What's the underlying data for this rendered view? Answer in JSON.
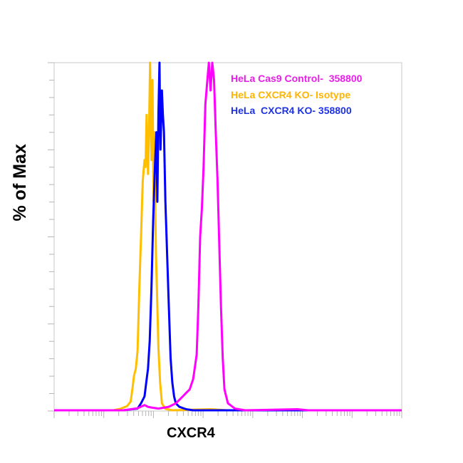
{
  "chart_data": {
    "type": "line",
    "title": "",
    "xlabel": "CXCR4",
    "ylabel": "% of Max",
    "x_scale": "log",
    "x_tick_labels_visible": false,
    "y_tick_labels_visible": false,
    "ylim": [
      0,
      100
    ],
    "grid": false,
    "legend_position": "top-right (inside)",
    "legend": [
      {
        "label": "HeLa Cas9 Control-  358800",
        "color": "#ff00ff"
      },
      {
        "label": "HeLa CXCR4 KO- Isotype",
        "color": "#ffbf00"
      },
      {
        "label": "HeLa  CXCR4 KO- 358800",
        "color": "#0000ff"
      }
    ],
    "x_note": "x values are fractional position along log axis (0 = left, 1 = right); 7 decades",
    "series": [
      {
        "name": "HeLa CXCR4 KO- Isotype",
        "color": "#ffbf00",
        "points": [
          [
            0.0,
            0
          ],
          [
            0.17,
            0
          ],
          [
            0.19,
            0.4
          ],
          [
            0.21,
            1.2
          ],
          [
            0.22,
            2.5
          ],
          [
            0.225,
            6
          ],
          [
            0.23,
            10
          ],
          [
            0.235,
            12
          ],
          [
            0.24,
            17
          ],
          [
            0.245,
            35
          ],
          [
            0.25,
            50
          ],
          [
            0.255,
            66
          ],
          [
            0.26,
            72
          ],
          [
            0.263,
            70
          ],
          [
            0.266,
            85
          ],
          [
            0.27,
            68
          ],
          [
            0.273,
            80
          ],
          [
            0.276,
            100
          ],
          [
            0.28,
            72
          ],
          [
            0.283,
            95
          ],
          [
            0.286,
            60
          ],
          [
            0.288,
            80
          ],
          [
            0.29,
            65
          ],
          [
            0.293,
            45
          ],
          [
            0.297,
            30
          ],
          [
            0.3,
            18
          ],
          [
            0.305,
            8
          ],
          [
            0.31,
            2
          ],
          [
            0.32,
            0.4
          ],
          [
            0.34,
            0
          ],
          [
            0.45,
            0.3
          ],
          [
            0.5,
            0
          ],
          [
            1.0,
            0
          ]
        ]
      },
      {
        "name": "HeLa  CXCR4 KO- 358800",
        "color": "#0000ff",
        "points": [
          [
            0.0,
            0
          ],
          [
            0.2,
            0
          ],
          [
            0.24,
            0.5
          ],
          [
            0.25,
            2
          ],
          [
            0.26,
            4
          ],
          [
            0.265,
            8
          ],
          [
            0.27,
            12
          ],
          [
            0.275,
            20
          ],
          [
            0.28,
            35
          ],
          [
            0.285,
            55
          ],
          [
            0.29,
            70
          ],
          [
            0.294,
            80
          ],
          [
            0.297,
            60
          ],
          [
            0.3,
            85
          ],
          [
            0.303,
            100
          ],
          [
            0.306,
            75
          ],
          [
            0.31,
            92
          ],
          [
            0.313,
            85
          ],
          [
            0.316,
            80
          ],
          [
            0.32,
            60
          ],
          [
            0.325,
            45
          ],
          [
            0.33,
            30
          ],
          [
            0.335,
            15
          ],
          [
            0.34,
            8
          ],
          [
            0.345,
            4
          ],
          [
            0.35,
            2
          ],
          [
            0.36,
            1
          ],
          [
            0.38,
            0.3
          ],
          [
            0.4,
            0
          ],
          [
            1.0,
            0
          ]
        ]
      },
      {
        "name": "HeLa Cas9 Control-  358800",
        "color": "#ff00ff",
        "points": [
          [
            0.0,
            0
          ],
          [
            0.2,
            0
          ],
          [
            0.24,
            0.6
          ],
          [
            0.26,
            1.5
          ],
          [
            0.27,
            1
          ],
          [
            0.28,
            0.8
          ],
          [
            0.3,
            0.5
          ],
          [
            0.33,
            1
          ],
          [
            0.35,
            2
          ],
          [
            0.36,
            3
          ],
          [
            0.37,
            4
          ],
          [
            0.38,
            5
          ],
          [
            0.39,
            6
          ],
          [
            0.4,
            9
          ],
          [
            0.41,
            16
          ],
          [
            0.415,
            30
          ],
          [
            0.42,
            50
          ],
          [
            0.425,
            58
          ],
          [
            0.43,
            70
          ],
          [
            0.435,
            88
          ],
          [
            0.44,
            94
          ],
          [
            0.445,
            100
          ],
          [
            0.45,
            92
          ],
          [
            0.455,
            100
          ],
          [
            0.46,
            95
          ],
          [
            0.465,
            80
          ],
          [
            0.47,
            66
          ],
          [
            0.475,
            48
          ],
          [
            0.48,
            30
          ],
          [
            0.485,
            15
          ],
          [
            0.49,
            6
          ],
          [
            0.5,
            2
          ],
          [
            0.52,
            0.5
          ],
          [
            0.55,
            0
          ],
          [
            0.7,
            0.3
          ],
          [
            0.73,
            0
          ],
          [
            1.0,
            0
          ]
        ]
      }
    ]
  },
  "axes": {
    "x_title": "CXCR4",
    "y_title": "% of Max"
  },
  "legend": {
    "item_0": "HeLa Cas9 Control-  358800",
    "item_1": "HeLa CXCR4 KO- Isotype",
    "item_2": "HeLa  CXCR4 KO- 358800"
  },
  "colors": {
    "control": "#ff00ff",
    "isotype": "#ffbf00",
    "ko": "#0000ff",
    "frame": "#c8c8c8"
  }
}
